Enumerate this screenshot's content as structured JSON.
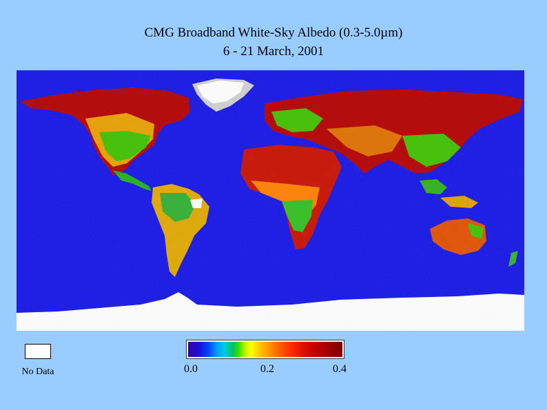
{
  "header": {
    "title_line1": "CMG Broadband White-Sky Albedo (0.3-5.0µm)",
    "title_line2": "6 - 21 March, 2001"
  },
  "legend": {
    "no_data_label": "No Data",
    "no_data_color": "#ffffff",
    "ticks": [
      "0.0",
      "0.2",
      "0.4"
    ],
    "range": [
      0.0,
      0.4
    ]
  },
  "colors": {
    "background": "#99ccff",
    "ocean": "#1414e6",
    "ice_no_data": "#ffffff",
    "low_albedo": "#00b000",
    "mid_albedo": "#e8c000",
    "high_albedo": "#b40000"
  }
}
